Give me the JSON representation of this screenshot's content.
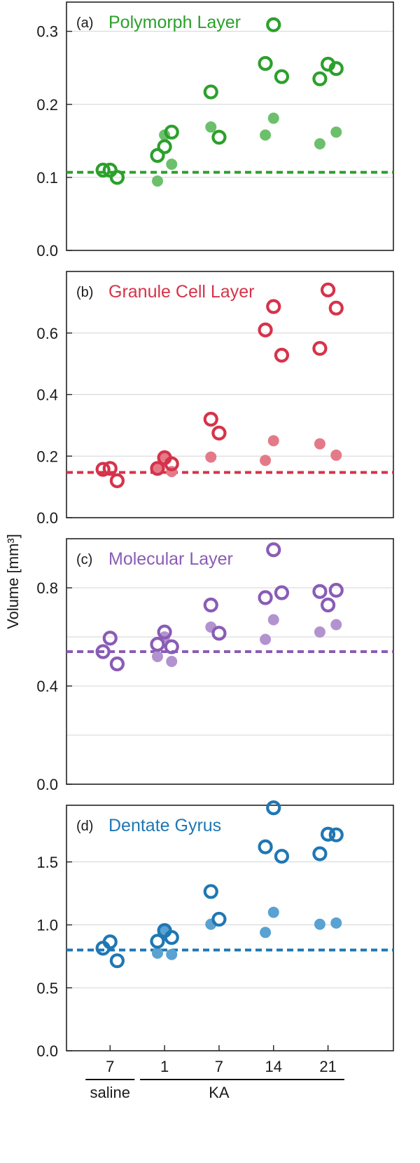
{
  "ylabel": "Volume [mm³]",
  "x_tick_labels": [
    "7",
    "1",
    "7",
    "14",
    "21"
  ],
  "group_labels": {
    "saline": "saline",
    "ka": "KA"
  },
  "chart_data": [
    {
      "type": "scatter",
      "tag": "(a)",
      "title": "Polymorph Layer",
      "color": "#2ca02c",
      "filled_color": "#6cc06c",
      "ylim": [
        0,
        0.34
      ],
      "yticks": [
        0.0,
        0.1,
        0.2,
        0.3
      ],
      "ytick_labels": [
        "0.0",
        "0.1",
        "0.2",
        "0.3"
      ],
      "reference_line": 0.107,
      "series": [
        {
          "marker": "open",
          "points": [
            {
              "x": 0.87,
              "y": 0.11
            },
            {
              "x": 1.0,
              "y": 0.11
            },
            {
              "x": 1.13,
              "y": 0.1
            },
            {
              "x": 1.87,
              "y": 0.13
            },
            {
              "x": 2.0,
              "y": 0.142
            },
            {
              "x": 2.13,
              "y": 0.162
            },
            {
              "x": 2.85,
              "y": 0.217
            },
            {
              "x": 3.0,
              "y": 0.155
            },
            {
              "x": 3.85,
              "y": 0.256
            },
            {
              "x": 4.0,
              "y": 0.309
            },
            {
              "x": 4.15,
              "y": 0.238
            },
            {
              "x": 4.85,
              "y": 0.235
            },
            {
              "x": 5.0,
              "y": 0.255
            },
            {
              "x": 5.15,
              "y": 0.249
            }
          ]
        },
        {
          "marker": "filled",
          "points": [
            {
              "x": 1.87,
              "y": 0.095
            },
            {
              "x": 2.0,
              "y": 0.158
            },
            {
              "x": 2.13,
              "y": 0.118
            },
            {
              "x": 2.85,
              "y": 0.169
            },
            {
              "x": 3.85,
              "y": 0.158
            },
            {
              "x": 4.0,
              "y": 0.181
            },
            {
              "x": 4.85,
              "y": 0.146
            },
            {
              "x": 5.15,
              "y": 0.162
            }
          ]
        }
      ]
    },
    {
      "type": "scatter",
      "tag": "(b)",
      "title": "Granule Cell Layer",
      "color": "#d6334a",
      "filled_color": "#e47a88",
      "ylim": [
        0,
        0.8
      ],
      "yticks": [
        0.0,
        0.2,
        0.4,
        0.6
      ],
      "ytick_labels": [
        "0.0",
        "0.2",
        "0.4",
        "0.6"
      ],
      "reference_line": 0.147,
      "series": [
        {
          "marker": "open",
          "points": [
            {
              "x": 0.87,
              "y": 0.157
            },
            {
              "x": 1.0,
              "y": 0.16
            },
            {
              "x": 1.13,
              "y": 0.12
            },
            {
              "x": 1.87,
              "y": 0.16
            },
            {
              "x": 2.0,
              "y": 0.195
            },
            {
              "x": 2.13,
              "y": 0.175
            },
            {
              "x": 2.85,
              "y": 0.32
            },
            {
              "x": 3.0,
              "y": 0.275
            },
            {
              "x": 3.85,
              "y": 0.61
            },
            {
              "x": 4.0,
              "y": 0.686
            },
            {
              "x": 4.15,
              "y": 0.528
            },
            {
              "x": 4.85,
              "y": 0.55
            },
            {
              "x": 5.0,
              "y": 0.74
            },
            {
              "x": 5.15,
              "y": 0.681
            }
          ]
        },
        {
          "marker": "filled",
          "points": [
            {
              "x": 1.87,
              "y": 0.16
            },
            {
              "x": 2.0,
              "y": 0.2
            },
            {
              "x": 2.13,
              "y": 0.15
            },
            {
              "x": 2.85,
              "y": 0.197
            },
            {
              "x": 3.85,
              "y": 0.186
            },
            {
              "x": 4.0,
              "y": 0.25
            },
            {
              "x": 4.85,
              "y": 0.24
            },
            {
              "x": 5.15,
              "y": 0.203
            }
          ]
        }
      ]
    },
    {
      "type": "scatter",
      "tag": "(c)",
      "title": "Molecular Layer",
      "color": "#8a5cb5",
      "filled_color": "#b393cf",
      "ylim": [
        0,
        1.0
      ],
      "yticks": [
        0.0,
        0.4,
        0.8
      ],
      "ytick_labels": [
        "0.0",
        "0.4",
        "0.8"
      ],
      "minor_grid": [
        0.2,
        0.6
      ],
      "reference_line": 0.54,
      "series": [
        {
          "marker": "open",
          "points": [
            {
              "x": 0.87,
              "y": 0.54
            },
            {
              "x": 1.0,
              "y": 0.595
            },
            {
              "x": 1.13,
              "y": 0.49
            },
            {
              "x": 1.87,
              "y": 0.57
            },
            {
              "x": 2.0,
              "y": 0.62
            },
            {
              "x": 2.13,
              "y": 0.56
            },
            {
              "x": 2.85,
              "y": 0.73
            },
            {
              "x": 3.0,
              "y": 0.615
            },
            {
              "x": 3.85,
              "y": 0.76
            },
            {
              "x": 4.0,
              "y": 0.955
            },
            {
              "x": 4.15,
              "y": 0.78
            },
            {
              "x": 4.85,
              "y": 0.785
            },
            {
              "x": 5.0,
              "y": 0.73
            },
            {
              "x": 5.15,
              "y": 0.79
            }
          ]
        },
        {
          "marker": "filled",
          "points": [
            {
              "x": 1.87,
              "y": 0.52
            },
            {
              "x": 2.0,
              "y": 0.6
            },
            {
              "x": 2.13,
              "y": 0.5
            },
            {
              "x": 2.85,
              "y": 0.64
            },
            {
              "x": 3.85,
              "y": 0.59
            },
            {
              "x": 4.0,
              "y": 0.67
            },
            {
              "x": 4.85,
              "y": 0.62
            },
            {
              "x": 5.15,
              "y": 0.65
            }
          ]
        }
      ]
    },
    {
      "type": "scatter",
      "tag": "(d)",
      "title": "Dentate Gyrus",
      "color": "#1f77b4",
      "filled_color": "#5aa2d2",
      "ylim": [
        0,
        1.95
      ],
      "yticks": [
        0.0,
        0.5,
        1.0,
        1.5
      ],
      "ytick_labels": [
        "0.0",
        "0.5",
        "1.0",
        "1.5"
      ],
      "reference_line": 0.8,
      "series": [
        {
          "marker": "open",
          "points": [
            {
              "x": 0.87,
              "y": 0.815
            },
            {
              "x": 1.0,
              "y": 0.865
            },
            {
              "x": 1.13,
              "y": 0.715
            },
            {
              "x": 1.87,
              "y": 0.87
            },
            {
              "x": 2.0,
              "y": 0.955
            },
            {
              "x": 2.13,
              "y": 0.9
            },
            {
              "x": 2.85,
              "y": 1.265
            },
            {
              "x": 3.0,
              "y": 1.045
            },
            {
              "x": 3.85,
              "y": 1.62
            },
            {
              "x": 4.0,
              "y": 1.93
            },
            {
              "x": 4.15,
              "y": 1.545
            },
            {
              "x": 4.85,
              "y": 1.565
            },
            {
              "x": 5.0,
              "y": 1.72
            },
            {
              "x": 5.15,
              "y": 1.715
            }
          ]
        },
        {
          "marker": "filled",
          "points": [
            {
              "x": 1.87,
              "y": 0.775
            },
            {
              "x": 2.0,
              "y": 0.96
            },
            {
              "x": 2.13,
              "y": 0.765
            },
            {
              "x": 2.85,
              "y": 1.005
            },
            {
              "x": 3.85,
              "y": 0.94
            },
            {
              "x": 4.0,
              "y": 1.1
            },
            {
              "x": 4.85,
              "y": 1.005
            },
            {
              "x": 5.15,
              "y": 1.015
            }
          ]
        }
      ]
    }
  ]
}
